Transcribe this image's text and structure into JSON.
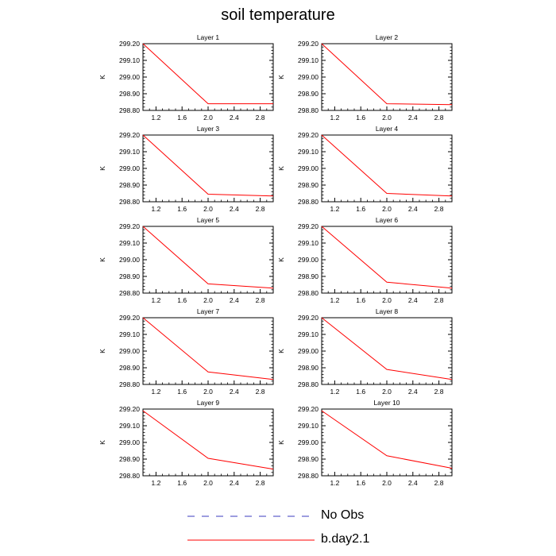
{
  "title": "soil temperature",
  "legend": {
    "placement": "bottom-center",
    "items": [
      {
        "label": "No Obs",
        "color": "#3b3bbf",
        "style": "dashed"
      },
      {
        "label": "b.day2.1",
        "color": "#ff0000",
        "style": "solid"
      }
    ]
  },
  "chart_data": [
    {
      "type": "line",
      "title": "Layer 1",
      "ylabel": "K",
      "xlim": [
        1.0,
        3.0
      ],
      "ylim": [
        298.8,
        299.2
      ],
      "xticks": [
        "1.2",
        "1.6",
        "2.0",
        "2.4",
        "2.8"
      ],
      "yticks": [
        "298.80",
        "298.90",
        "299.00",
        "299.10",
        "299.20"
      ],
      "series": [
        {
          "name": "b.day2.1",
          "color": "#ff0000",
          "x": [
            1,
            2,
            3
          ],
          "y": [
            299.2,
            298.84,
            298.84
          ]
        }
      ]
    },
    {
      "type": "line",
      "title": "Layer 2",
      "ylabel": "K",
      "xlim": [
        1.0,
        3.0
      ],
      "ylim": [
        298.8,
        299.2
      ],
      "xticks": [
        "1.2",
        "1.6",
        "2.0",
        "2.4",
        "2.8"
      ],
      "yticks": [
        "298.80",
        "298.90",
        "299.00",
        "299.10",
        "299.20"
      ],
      "series": [
        {
          "name": "b.day2.1",
          "color": "#ff0000",
          "x": [
            1,
            2,
            3
          ],
          "y": [
            299.2,
            298.84,
            298.835
          ]
        }
      ]
    },
    {
      "type": "line",
      "title": "Layer 3",
      "ylabel": "K",
      "xlim": [
        1.0,
        3.0
      ],
      "ylim": [
        298.8,
        299.2
      ],
      "xticks": [
        "1.2",
        "1.6",
        "2.0",
        "2.4",
        "2.8"
      ],
      "yticks": [
        "298.80",
        "298.90",
        "299.00",
        "299.10",
        "299.20"
      ],
      "series": [
        {
          "name": "b.day2.1",
          "color": "#ff0000",
          "x": [
            1,
            2,
            3
          ],
          "y": [
            299.2,
            298.845,
            298.835
          ]
        }
      ]
    },
    {
      "type": "line",
      "title": "Layer 4",
      "ylabel": "K",
      "xlim": [
        1.0,
        3.0
      ],
      "ylim": [
        298.8,
        299.2
      ],
      "xticks": [
        "1.2",
        "1.6",
        "2.0",
        "2.4",
        "2.8"
      ],
      "yticks": [
        "298.80",
        "298.90",
        "299.00",
        "299.10",
        "299.20"
      ],
      "series": [
        {
          "name": "b.day2.1",
          "color": "#ff0000",
          "x": [
            1,
            2,
            3
          ],
          "y": [
            299.2,
            298.85,
            298.835
          ]
        }
      ]
    },
    {
      "type": "line",
      "title": "Layer 5",
      "ylabel": "K",
      "xlim": [
        1.0,
        3.0
      ],
      "ylim": [
        298.8,
        299.2
      ],
      "xticks": [
        "1.2",
        "1.6",
        "2.0",
        "2.4",
        "2.8"
      ],
      "yticks": [
        "298.80",
        "298.90",
        "299.00",
        "299.10",
        "299.20"
      ],
      "series": [
        {
          "name": "b.day2.1",
          "color": "#ff0000",
          "x": [
            1,
            2,
            3
          ],
          "y": [
            299.2,
            298.855,
            298.83
          ]
        }
      ]
    },
    {
      "type": "line",
      "title": "Layer 6",
      "ylabel": "K",
      "xlim": [
        1.0,
        3.0
      ],
      "ylim": [
        298.8,
        299.2
      ],
      "xticks": [
        "1.2",
        "1.6",
        "2.0",
        "2.4",
        "2.8"
      ],
      "yticks": [
        "298.80",
        "298.90",
        "299.00",
        "299.10",
        "299.20"
      ],
      "series": [
        {
          "name": "b.day2.1",
          "color": "#ff0000",
          "x": [
            1,
            2,
            3
          ],
          "y": [
            299.2,
            298.865,
            298.83
          ]
        }
      ]
    },
    {
      "type": "line",
      "title": "Layer 7",
      "ylabel": "K",
      "xlim": [
        1.0,
        3.0
      ],
      "ylim": [
        298.8,
        299.2
      ],
      "xticks": [
        "1.2",
        "1.6",
        "2.0",
        "2.4",
        "2.8"
      ],
      "yticks": [
        "298.80",
        "298.90",
        "299.00",
        "299.10",
        "299.20"
      ],
      "series": [
        {
          "name": "b.day2.1",
          "color": "#ff0000",
          "x": [
            1,
            2,
            3
          ],
          "y": [
            299.2,
            298.875,
            298.83
          ]
        }
      ]
    },
    {
      "type": "line",
      "title": "Layer 8",
      "ylabel": "K",
      "xlim": [
        1.0,
        3.0
      ],
      "ylim": [
        298.8,
        299.2
      ],
      "xticks": [
        "1.2",
        "1.6",
        "2.0",
        "2.4",
        "2.8"
      ],
      "yticks": [
        "298.80",
        "298.90",
        "299.00",
        "299.10",
        "299.20"
      ],
      "series": [
        {
          "name": "b.day2.1",
          "color": "#ff0000",
          "x": [
            1,
            2,
            3
          ],
          "y": [
            299.2,
            298.89,
            298.83
          ]
        }
      ]
    },
    {
      "type": "line",
      "title": "Layer 9",
      "ylabel": "K",
      "xlim": [
        1.0,
        3.0
      ],
      "ylim": [
        298.8,
        299.2
      ],
      "xticks": [
        "1.2",
        "1.6",
        "2.0",
        "2.4",
        "2.8"
      ],
      "yticks": [
        "298.80",
        "298.90",
        "299.00",
        "299.10",
        "299.20"
      ],
      "series": [
        {
          "name": "b.day2.1",
          "color": "#ff0000",
          "x": [
            1,
            2,
            3
          ],
          "y": [
            299.19,
            298.905,
            298.84
          ]
        }
      ]
    },
    {
      "type": "line",
      "title": "Layer 10",
      "ylabel": "K",
      "xlim": [
        1.0,
        3.0
      ],
      "ylim": [
        298.8,
        299.2
      ],
      "xticks": [
        "1.2",
        "1.6",
        "2.0",
        "2.4",
        "2.8"
      ],
      "yticks": [
        "298.80",
        "298.90",
        "299.00",
        "299.10",
        "299.20"
      ],
      "series": [
        {
          "name": "b.day2.1",
          "color": "#ff0000",
          "x": [
            1,
            2,
            3
          ],
          "y": [
            299.19,
            298.92,
            298.845
          ]
        }
      ]
    }
  ]
}
